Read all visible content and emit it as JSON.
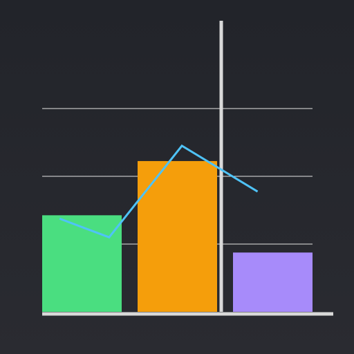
{
  "chart_data": {
    "type": "bar",
    "categories": [
      "",
      "",
      ""
    ],
    "series": [
      {
        "type": "bar",
        "values": [
          0.57,
          0.89,
          0.35
        ],
        "colors": [
          "#4ade80",
          "#f59e0b",
          "#a78bfa"
        ]
      },
      {
        "type": "line",
        "values": [
          0.55,
          0.44,
          0.98,
          0.71
        ],
        "x": [
          0.06,
          0.23,
          0.48,
          0.74
        ],
        "color": "#4fc3f7"
      }
    ],
    "title": "",
    "xlabel": "",
    "ylabel": "",
    "ylim": [
      0,
      1.2
    ],
    "grid": true,
    "gridlines": [
      0.4,
      0.8,
      1.2
    ],
    "marker_x": 0.6
  },
  "colors": {
    "grid": "#e6e6e6",
    "axis": "#d9d9d9",
    "marker": "#d9d9d9"
  }
}
